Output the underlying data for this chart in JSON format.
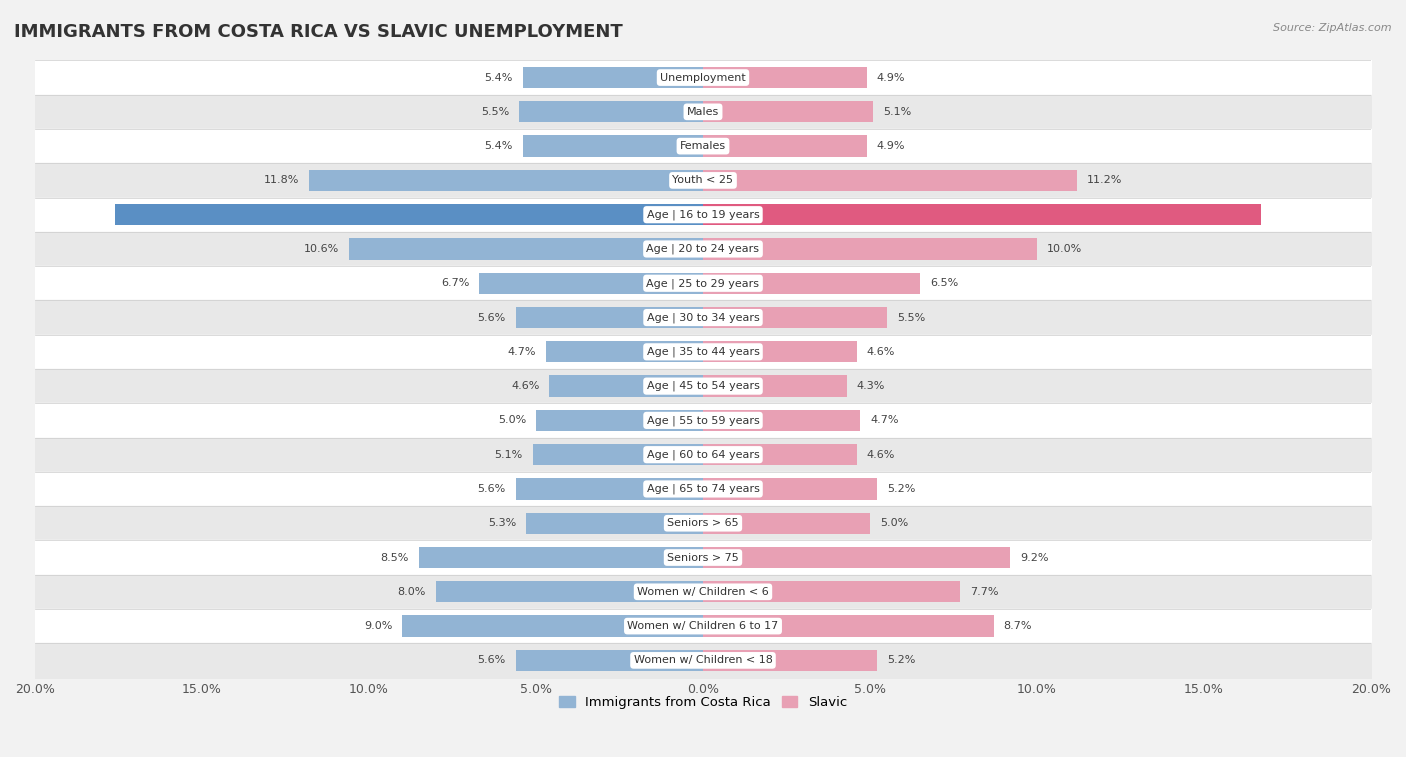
{
  "title": "IMMIGRANTS FROM COSTA RICA VS SLAVIC UNEMPLOYMENT",
  "source": "Source: ZipAtlas.com",
  "categories": [
    "Unemployment",
    "Males",
    "Females",
    "Youth < 25",
    "Age | 16 to 19 years",
    "Age | 20 to 24 years",
    "Age | 25 to 29 years",
    "Age | 30 to 34 years",
    "Age | 35 to 44 years",
    "Age | 45 to 54 years",
    "Age | 55 to 59 years",
    "Age | 60 to 64 years",
    "Age | 65 to 74 years",
    "Seniors > 65",
    "Seniors > 75",
    "Women w/ Children < 6",
    "Women w/ Children 6 to 17",
    "Women w/ Children < 18"
  ],
  "costa_rica": [
    5.4,
    5.5,
    5.4,
    11.8,
    17.6,
    10.6,
    6.7,
    5.6,
    4.7,
    4.6,
    5.0,
    5.1,
    5.6,
    5.3,
    8.5,
    8.0,
    9.0,
    5.6
  ],
  "slavic": [
    4.9,
    5.1,
    4.9,
    11.2,
    16.7,
    10.0,
    6.5,
    5.5,
    4.6,
    4.3,
    4.7,
    4.6,
    5.2,
    5.0,
    9.2,
    7.7,
    8.7,
    5.2
  ],
  "costa_rica_color": "#92b4d4",
  "slavic_color": "#e8a0b4",
  "highlight_costa_rica_color": "#5a8fc4",
  "highlight_slavic_color": "#e05a80",
  "axis_max": 20.0,
  "bar_height": 0.62,
  "background_color": "#f2f2f2",
  "row_color_even": "#ffffff",
  "row_color_odd": "#e8e8e8",
  "label_fontsize": 8.0,
  "value_fontsize": 8.0,
  "title_fontsize": 13,
  "legend_fontsize": 9.5,
  "highlight_rows": [
    "Age | 16 to 19 years"
  ]
}
